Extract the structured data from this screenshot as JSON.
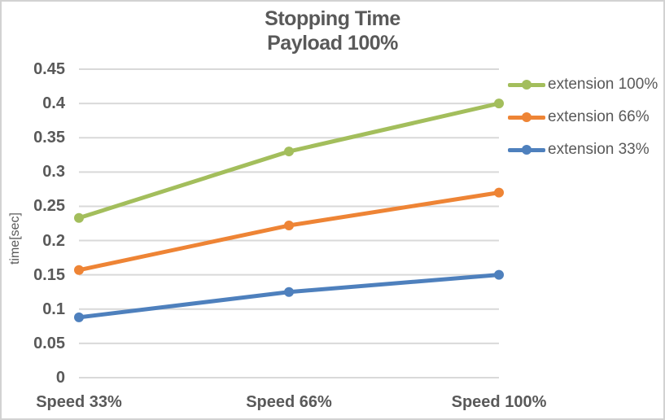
{
  "title": {
    "line1": "Stopping Time",
    "line2": "Payload 100%"
  },
  "colors": {
    "series_green": "#a3be5c",
    "series_orange": "#ee8435",
    "series_blue": "#4e80bd",
    "gridline": "#d9d9d9",
    "text": "#595959",
    "border": "#d2d2d2",
    "background": "#ffffff"
  },
  "chart_data": {
    "type": "line",
    "title": "Stopping Time",
    "subtitle": "Payload 100%",
    "categories": [
      "Speed 33%",
      "Speed 66%",
      "Speed 100%"
    ],
    "series": [
      {
        "name": "extension 100%",
        "color": "#a3be5c",
        "values": [
          0.233,
          0.33,
          0.4
        ]
      },
      {
        "name": "extension 66%",
        "color": "#ee8435",
        "values": [
          0.157,
          0.222,
          0.27
        ]
      },
      {
        "name": "extension 33%",
        "color": "#4e80bd",
        "values": [
          0.088,
          0.125,
          0.15
        ]
      }
    ],
    "xlabel": "",
    "ylabel": "time[sec]",
    "ylim": [
      0,
      0.45
    ],
    "ytick_step": 0.05,
    "yticks": [
      "0",
      "0.05",
      "0.1",
      "0.15",
      "0.2",
      "0.25",
      "0.3",
      "0.35",
      "0.4",
      "0.45"
    ],
    "grid": "horizontal-only",
    "legend_position": "right",
    "marker": "circle"
  }
}
